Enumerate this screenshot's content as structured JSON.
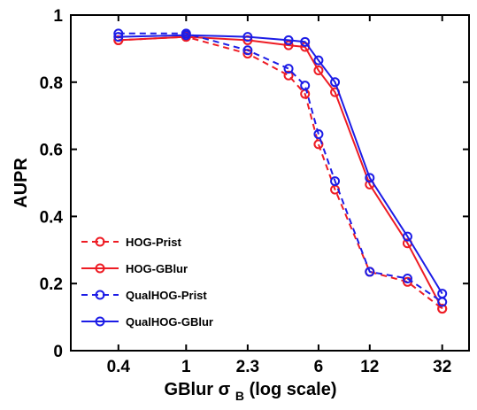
{
  "chart_data": {
    "type": "line",
    "xlabel": "GBlur σ",
    "xlabel_sub": "B",
    "xlabel_suffix": " (log scale)",
    "ylabel": "AUPR",
    "x_scale": "log",
    "xlim": [
      0.21,
      46
    ],
    "ylim": [
      0,
      1
    ],
    "x_ticks": [
      0.4,
      1,
      2.3,
      6,
      12,
      32
    ],
    "x_tick_labels": [
      "0.4",
      "1",
      "2.3",
      "6",
      "12",
      "32"
    ],
    "y_ticks": [
      0,
      0.2,
      0.4,
      0.6,
      0.8,
      1
    ],
    "y_tick_labels": [
      "0",
      "0.2",
      "0.4",
      "0.6",
      "0.8",
      "1"
    ],
    "grid": false,
    "legend_position": "bottom-left",
    "x": [
      0.4,
      1,
      2.3,
      4,
      5,
      6,
      7.5,
      12,
      20,
      32
    ],
    "series": [
      {
        "name": "HOG-Prist",
        "color": "#ee1c24",
        "dashed": true,
        "values": [
          0.925,
          0.935,
          0.885,
          0.82,
          0.765,
          0.615,
          0.48,
          0.235,
          0.205,
          0.125
        ]
      },
      {
        "name": "HOG-GBlur",
        "color": "#ee1c24",
        "dashed": false,
        "values": [
          0.925,
          0.935,
          0.925,
          0.91,
          0.905,
          0.835,
          0.77,
          0.495,
          0.32,
          0.125
        ]
      },
      {
        "name": "QualHOG-Prist",
        "color": "#1c1ce6",
        "dashed": true,
        "values": [
          0.945,
          0.945,
          0.895,
          0.84,
          0.79,
          0.645,
          0.505,
          0.235,
          0.215,
          0.145
        ]
      },
      {
        "name": "QualHOG-GBlur",
        "color": "#1c1ce6",
        "dashed": false,
        "values": [
          0.935,
          0.94,
          0.935,
          0.925,
          0.92,
          0.865,
          0.8,
          0.515,
          0.34,
          0.17
        ]
      }
    ]
  }
}
